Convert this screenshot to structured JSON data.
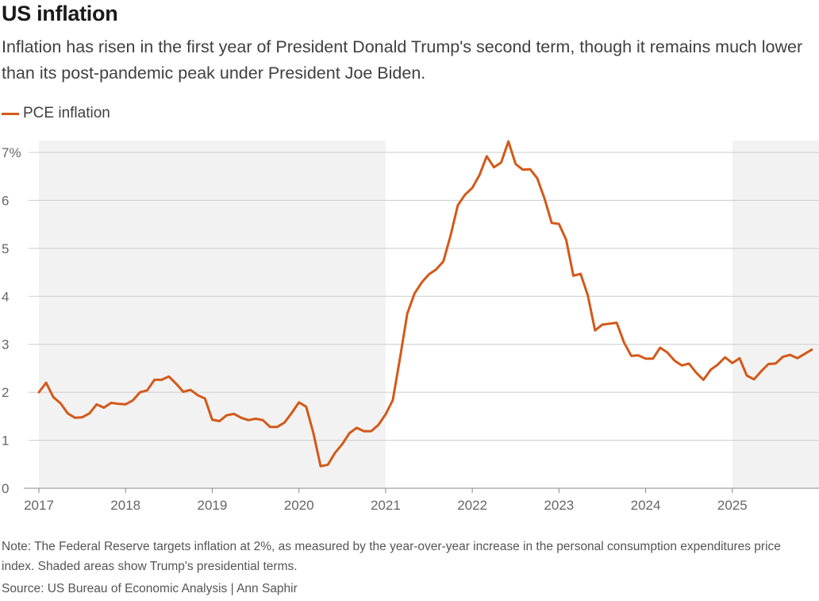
{
  "header": {
    "title": "US inflation",
    "subtitle": "Inflation has risen in the first year of President Donald Trump's second term, though it remains much lower than its post-pandemic peak under President Joe Biden."
  },
  "footer": {
    "note": "Note: The Federal Reserve targets inflation at 2%, as measured by the year-over-year increase in the personal consumption expenditures price index. Shaded areas show Trump's presidential terms.",
    "source": "Source: US Bureau of Economic Analysis | Ann Saphir"
  },
  "colors": {
    "series": "#d35919",
    "shade": "#f2f2f2",
    "grid": "#cccccc",
    "baseline": "#888888"
  },
  "chart_data": {
    "type": "line",
    "title": "US inflation",
    "legend": "top-left",
    "grid": true,
    "x_start": "2017-01",
    "x_end": "2026-01",
    "ylim": [
      0,
      7
    ],
    "y_ticks": [
      "0",
      "1",
      "2",
      "3",
      "4",
      "5",
      "6",
      "7%"
    ],
    "x_ticks": [
      "2017",
      "2018",
      "2019",
      "2020",
      "2021",
      "2022",
      "2023",
      "2024",
      "2025"
    ],
    "shaded_periods": [
      {
        "start": "2017-01",
        "end": "2021-01"
      },
      {
        "start": "2025-01",
        "end": "2026-01"
      }
    ],
    "series": [
      {
        "name": "PCE inflation",
        "start": "2017-01",
        "frequency": "monthly",
        "values": [
          2.0,
          2.2,
          1.9,
          1.77,
          1.56,
          1.47,
          1.48,
          1.56,
          1.75,
          1.68,
          1.78,
          1.76,
          1.75,
          1.83,
          2.0,
          2.04,
          2.26,
          2.26,
          2.33,
          2.18,
          2.01,
          2.05,
          1.94,
          1.87,
          1.43,
          1.4,
          1.52,
          1.55,
          1.47,
          1.42,
          1.45,
          1.42,
          1.28,
          1.28,
          1.37,
          1.57,
          1.79,
          1.7,
          1.15,
          0.46,
          0.49,
          0.74,
          0.92,
          1.15,
          1.26,
          1.19,
          1.19,
          1.32,
          1.54,
          1.84,
          2.72,
          3.64,
          4.06,
          4.29,
          4.46,
          4.56,
          4.73,
          5.27,
          5.9,
          6.12,
          6.26,
          6.53,
          6.92,
          6.69,
          6.79,
          7.23,
          6.76,
          6.64,
          6.65,
          6.46,
          6.04,
          5.53,
          5.51,
          5.18,
          4.43,
          4.47,
          4.02,
          3.29,
          3.41,
          3.43,
          3.45,
          3.04,
          2.76,
          2.77,
          2.7,
          2.7,
          2.93,
          2.83,
          2.66,
          2.56,
          2.6,
          2.41,
          2.26,
          2.47,
          2.58,
          2.73,
          2.61,
          2.71,
          2.35,
          2.27,
          2.44,
          2.59,
          2.6,
          2.74,
          2.78,
          2.71,
          2.8,
          2.89
        ]
      }
    ]
  },
  "footer_meta": {}
}
